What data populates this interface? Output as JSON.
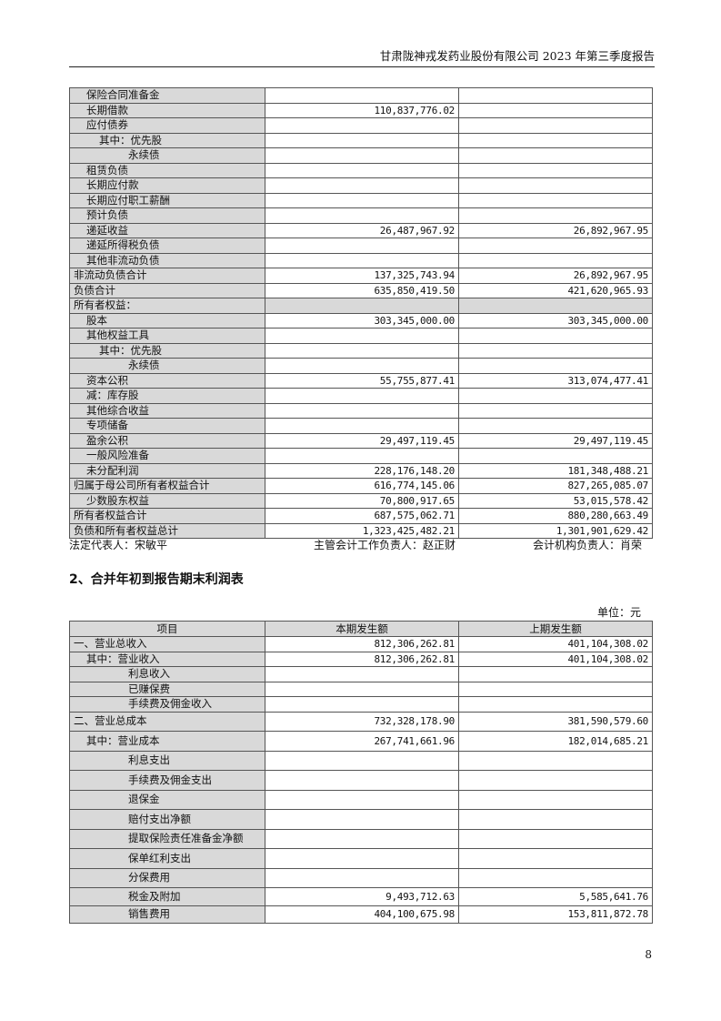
{
  "header": {
    "title": "甘肃陇神戎发药业股份有限公司 2023 年第三季度报告"
  },
  "balance_sheet": {
    "rows": [
      {
        "label": "保险合同准备金",
        "level": 1,
        "current": "",
        "previous": ""
      },
      {
        "label": "长期借款",
        "level": 1,
        "current": "110,837,776.02",
        "previous": ""
      },
      {
        "label": "应付债券",
        "level": 1,
        "current": "",
        "previous": ""
      },
      {
        "label": "其中：优先股",
        "level": 2,
        "current": "",
        "previous": ""
      },
      {
        "label": "永续债",
        "level": 3,
        "current": "",
        "previous": ""
      },
      {
        "label": "租赁负债",
        "level": 1,
        "current": "",
        "previous": ""
      },
      {
        "label": "长期应付款",
        "level": 1,
        "current": "",
        "previous": ""
      },
      {
        "label": "长期应付职工薪酬",
        "level": 1,
        "current": "",
        "previous": ""
      },
      {
        "label": "预计负债",
        "level": 1,
        "current": "",
        "previous": ""
      },
      {
        "label": "递延收益",
        "level": 1,
        "current": "26,487,967.92",
        "previous": "26,892,967.95"
      },
      {
        "label": "递延所得税负债",
        "level": 1,
        "current": "",
        "previous": ""
      },
      {
        "label": "其他非流动负债",
        "level": 1,
        "current": "",
        "previous": ""
      },
      {
        "label": "非流动负债合计",
        "level": 0,
        "current": "137,325,743.94",
        "previous": "26,892,967.95"
      },
      {
        "label": "负债合计",
        "level": 0,
        "current": "635,850,419.50",
        "previous": "421,620,965.93"
      },
      {
        "label": "所有者权益：",
        "level": 0,
        "current": "",
        "previous": "",
        "gray": true
      },
      {
        "label": "股本",
        "level": 1,
        "current": "303,345,000.00",
        "previous": "303,345,000.00"
      },
      {
        "label": "其他权益工具",
        "level": 1,
        "current": "",
        "previous": ""
      },
      {
        "label": "其中：优先股",
        "level": 2,
        "current": "",
        "previous": ""
      },
      {
        "label": "永续债",
        "level": 3,
        "current": "",
        "previous": ""
      },
      {
        "label": "资本公积",
        "level": 1,
        "current": "55,755,877.41",
        "previous": "313,074,477.41"
      },
      {
        "label": "减：库存股",
        "level": 1,
        "current": "",
        "previous": ""
      },
      {
        "label": "其他综合收益",
        "level": 1,
        "current": "",
        "previous": ""
      },
      {
        "label": "专项储备",
        "level": 1,
        "current": "",
        "previous": ""
      },
      {
        "label": "盈余公积",
        "level": 1,
        "current": "29,497,119.45",
        "previous": "29,497,119.45"
      },
      {
        "label": "一般风险准备",
        "level": 1,
        "current": "",
        "previous": ""
      },
      {
        "label": "未分配利润",
        "level": 1,
        "current": "228,176,148.20",
        "previous": "181,348,488.21"
      },
      {
        "label": "归属于母公司所有者权益合计",
        "level": 0,
        "current": "616,774,145.06",
        "previous": "827,265,085.07"
      },
      {
        "label": "少数股东权益",
        "level": 1,
        "current": "70,800,917.65",
        "previous": "53,015,578.42"
      },
      {
        "label": "所有者权益合计",
        "level": 0,
        "current": "687,575,062.71",
        "previous": "880,280,663.49"
      },
      {
        "label": "负债和所有者权益总计",
        "level": 0,
        "current": "1,323,425,482.21",
        "previous": "1,301,901,629.42"
      }
    ]
  },
  "signatures": {
    "legal_rep": "法定代表人：宋敏平",
    "accounting_head": "主管会计工作负责人：赵正财",
    "accounting_org_head": "会计机构负责人：肖荣"
  },
  "income_statement": {
    "section_title": "2、合并年初到报告期末利润表",
    "unit": "单位：元",
    "columns": [
      "项目",
      "本期发生额",
      "上期发生额"
    ],
    "rows": [
      {
        "label": "一、营业总收入",
        "level": 0,
        "current": "812,306,262.81",
        "previous": "401,104,308.02"
      },
      {
        "label": "其中：营业收入",
        "level": 1,
        "current": "812,306,262.81",
        "previous": "401,104,308.02"
      },
      {
        "label": "利息收入",
        "level": 3,
        "current": "",
        "previous": ""
      },
      {
        "label": "已赚保费",
        "level": 3,
        "current": "",
        "previous": ""
      },
      {
        "label": "手续费及佣金收入",
        "level": 3,
        "current": "",
        "previous": ""
      },
      {
        "label": "二、营业总成本",
        "level": 0,
        "current": "732,328,178.90",
        "previous": "381,590,579.60"
      },
      {
        "label": "其中：营业成本",
        "level": 1,
        "current": "267,741,661.96",
        "previous": "182,014,685.21"
      },
      {
        "label": "利息支出",
        "level": 3,
        "current": "",
        "previous": ""
      },
      {
        "label": "手续费及佣金支出",
        "level": 3,
        "current": "",
        "previous": ""
      },
      {
        "label": "退保金",
        "level": 3,
        "current": "",
        "previous": ""
      },
      {
        "label": "赔付支出净额",
        "level": 3,
        "current": "",
        "previous": ""
      },
      {
        "label": "提取保险责任准备金净额",
        "level": 3,
        "current": "",
        "previous": ""
      },
      {
        "label": "保单红利支出",
        "level": 3,
        "current": "",
        "previous": ""
      },
      {
        "label": "分保费用",
        "level": 3,
        "current": "",
        "previous": ""
      },
      {
        "label": "税金及附加",
        "level": 3,
        "current": "9,493,712.63",
        "previous": "5,585,641.76"
      },
      {
        "label": "销售费用",
        "level": 3,
        "current": "404,100,675.98",
        "previous": "153,811,872.78"
      }
    ]
  },
  "page_number": "8"
}
